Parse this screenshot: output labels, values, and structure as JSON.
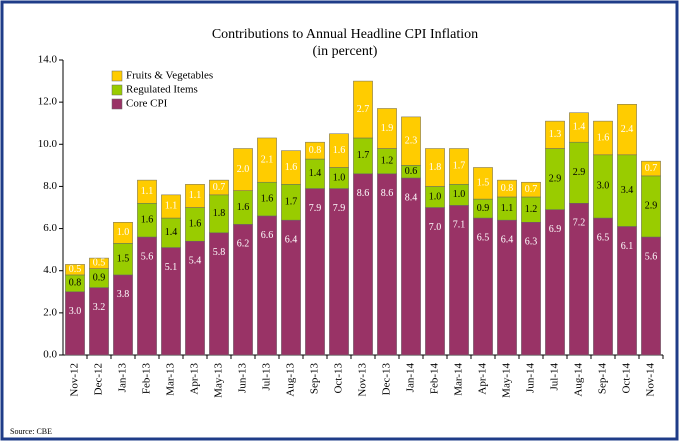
{
  "chart_data": {
    "type": "stacked_bar",
    "title": "Contributions to Annual Headline CPI Inflation",
    "subtitle": "(in percent)",
    "source": "Source: CBE",
    "categories": [
      "Nov-12",
      "Dec-12",
      "Jan-13",
      "Feb-13",
      "Mar-13",
      "Apr-13",
      "May-13",
      "Jun-13",
      "Jul-13",
      "Aug-13",
      "Sep-13",
      "Oct-13",
      "Nov-13",
      "Dec-13",
      "Jan-14",
      "Feb-14",
      "Mar-14",
      "Apr-14",
      "May-14",
      "Jun-14",
      "Jul-14",
      "Aug-14",
      "Sep-14",
      "Oct-14",
      "Nov-14"
    ],
    "series": [
      {
        "name": "Core CPI",
        "color": "#993366",
        "values": [
          3.0,
          3.2,
          3.8,
          5.6,
          5.1,
          5.4,
          5.8,
          6.2,
          6.6,
          6.4,
          7.9,
          7.9,
          8.6,
          8.6,
          8.4,
          7.0,
          7.1,
          6.5,
          6.4,
          6.3,
          6.9,
          7.2,
          6.5,
          6.1,
          5.6
        ],
        "value_labels": [
          "3.0",
          "3.2",
          "3.8",
          "5.6",
          "5.1",
          "5.4",
          "5.8",
          "6.2",
          "6.6",
          "6.4",
          "7.9",
          "7.9",
          "8.6",
          "8.6",
          "8.4",
          "7.0",
          "7.1",
          "6.5",
          "6.4",
          "6.3",
          "6.9",
          "7.2",
          "6.5",
          "6.1",
          "5.6"
        ]
      },
      {
        "name": "Regulated Items",
        "color": "#99cc00",
        "values": [
          0.8,
          0.9,
          1.5,
          1.6,
          1.4,
          1.6,
          1.8,
          1.6,
          1.6,
          1.7,
          1.4,
          1.0,
          1.7,
          1.2,
          0.6,
          1.0,
          1.0,
          0.9,
          1.1,
          1.2,
          2.9,
          2.9,
          3.0,
          3.4,
          2.9
        ],
        "value_labels": [
          "0.8",
          "0.9",
          "1.5",
          "1.6",
          "1.4",
          "1.6",
          "1.8",
          "1.6",
          "1.6",
          "1.7",
          "1.4",
          "1.0",
          "1.7",
          "1.2",
          "0.6",
          "1.0",
          "1.0",
          "0.9",
          "1.1",
          "1.2",
          "2.9",
          "2.9",
          "3.0",
          "3.4",
          "2.9"
        ]
      },
      {
        "name": "Fruits & Vegetables",
        "color": "#ffcc00",
        "values": [
          0.5,
          0.5,
          1.0,
          1.1,
          1.1,
          1.1,
          0.7,
          2.0,
          2.1,
          1.6,
          0.8,
          1.6,
          2.7,
          1.9,
          2.3,
          1.8,
          1.7,
          1.5,
          0.8,
          0.7,
          1.3,
          1.4,
          1.6,
          2.4,
          0.7
        ],
        "value_labels": [
          "0.5",
          "0.5",
          "1.0",
          "1.1",
          "1.1",
          "1.1",
          "0.7",
          "2.0",
          "2.1",
          "1.6",
          "0.8",
          "1.6",
          "2.7",
          "1.9",
          "2.3",
          "1.8",
          "1.7",
          "1.5",
          "0.8",
          "0.7",
          "1.3",
          "1.4",
          "1.6",
          "2.4",
          "0.7"
        ]
      }
    ],
    "ylim": [
      0,
      14
    ],
    "yticks": [
      {
        "value": 0,
        "label": "0.0"
      },
      {
        "value": 2,
        "label": "2.0"
      },
      {
        "value": 4,
        "label": "4.0"
      },
      {
        "value": 6,
        "label": "6.0"
      },
      {
        "value": 8,
        "label": "8.0"
      },
      {
        "value": 10,
        "label": "10.0"
      },
      {
        "value": 12,
        "label": "12.0"
      },
      {
        "value": 14,
        "label": "14.0"
      }
    ],
    "legend": "upper left"
  }
}
